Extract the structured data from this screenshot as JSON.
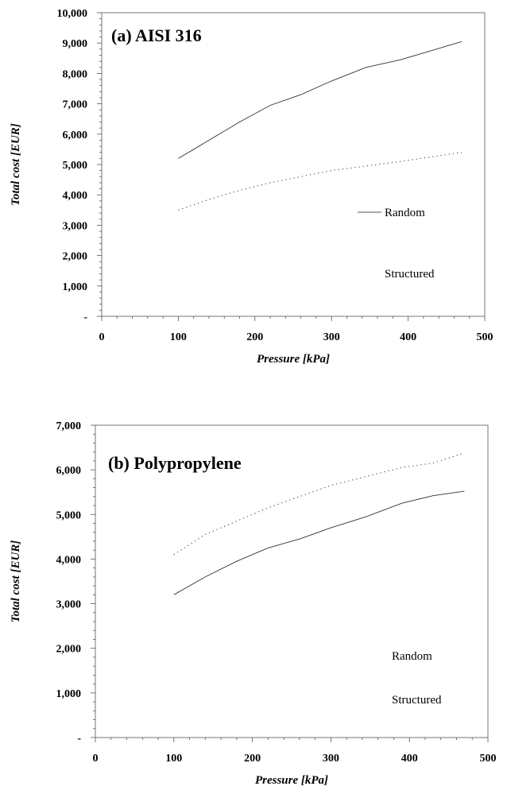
{
  "chart_data": [
    {
      "type": "line",
      "title": "(a) AISI 316",
      "xlabel": "Pressure [kPa]",
      "ylabel": "Total cost  [EUR]",
      "xlim": [
        0,
        500
      ],
      "ylim": [
        0,
        10000
      ],
      "x_ticks": [
        "0",
        "100",
        "200",
        "300",
        "400",
        "500"
      ],
      "y_ticks": [
        "-",
        "1,000",
        "2,000",
        "3,000",
        "4,000",
        "5,000",
        "6,000",
        "7,000",
        "8,000",
        "9,000",
        "10,000"
      ],
      "legend_placement": "right",
      "series": [
        {
          "name": "Random",
          "style": "solid",
          "x": [
            100,
            140,
            180,
            220,
            260,
            300,
            345,
            390,
            430,
            470
          ],
          "y": [
            5200,
            5800,
            6400,
            6950,
            7300,
            7750,
            8200,
            8450,
            8750,
            9050
          ]
        },
        {
          "name": "Structured",
          "style": "dotted",
          "x": [
            100,
            140,
            180,
            220,
            260,
            300,
            345,
            390,
            430,
            470
          ],
          "y": [
            3500,
            3850,
            4150,
            4400,
            4600,
            4800,
            4950,
            5100,
            5250,
            5400
          ]
        }
      ]
    },
    {
      "type": "line",
      "title": "(b) Polypropylene",
      "xlabel": "Pressure [kPa]",
      "ylabel": "Total cost  [EUR]",
      "xlim": [
        0,
        500
      ],
      "ylim": [
        0,
        7000
      ],
      "x_ticks": [
        "0",
        "100",
        "200",
        "300",
        "400",
        "500"
      ],
      "y_ticks": [
        "-",
        "1,000",
        "2,000",
        "3,000",
        "4,000",
        "5,000",
        "6,000",
        "7,000"
      ],
      "legend_placement": "bottom-right",
      "series": [
        {
          "name": "Random",
          "style": "solid",
          "x": [
            100,
            140,
            180,
            220,
            260,
            300,
            345,
            390,
            430,
            470
          ],
          "y": [
            3200,
            3600,
            3950,
            4250,
            4450,
            4700,
            4950,
            5250,
            5420,
            5520
          ]
        },
        {
          "name": "Structured",
          "style": "dotted",
          "x": [
            100,
            140,
            180,
            220,
            260,
            300,
            345,
            390,
            430,
            470
          ],
          "y": [
            4100,
            4550,
            4850,
            5150,
            5400,
            5650,
            5850,
            6050,
            6150,
            6380
          ]
        }
      ]
    }
  ]
}
